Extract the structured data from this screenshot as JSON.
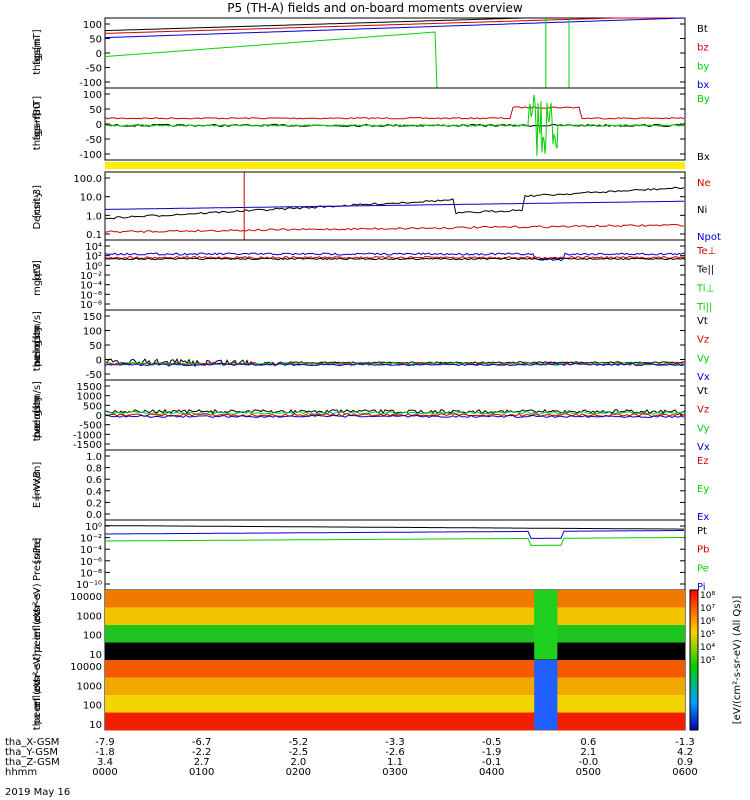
{
  "title": "P5 (TH-A) fields and on-board moments overview",
  "colors": {
    "black": "#000000",
    "red": "#d00000",
    "green": "#00d000",
    "blue": "#0000d0",
    "yellow": "#ffee00"
  },
  "chart_data": [
    {
      "type": "line",
      "panel": "fgs-gsm",
      "ylabel": [
        "tha",
        "fgs",
        "gsm",
        "[nT]"
      ],
      "yticks": [
        "100",
        "50",
        "0",
        "-50",
        "-100"
      ],
      "ylim": [
        -100,
        100
      ],
      "legend": [
        {
          "name": "Bt",
          "color": "black"
        },
        {
          "name": "bz",
          "color": "red"
        },
        {
          "name": "by",
          "color": "green"
        },
        {
          "name": "bx",
          "color": "blue"
        }
      ]
    },
    {
      "type": "line",
      "panel": "fgs-gsm-filtered",
      "ylabel": [
        "tha",
        "fgs",
        "gsm",
        "~f80",
        "[nT]"
      ],
      "yticks": [
        "100",
        "50",
        "0",
        "-50",
        "-100"
      ],
      "ylim": [
        -120,
        120
      ],
      "legend": [
        {
          "name": "By",
          "color": "green"
        },
        {
          "name": "Bx",
          "color": "black"
        }
      ]
    },
    {
      "type": "line",
      "panel": "density",
      "ylabel": [
        "Density",
        "[cm-3]"
      ],
      "yticks": [
        "100.0",
        "10.0",
        "1.0",
        "0.1"
      ],
      "yscale": "log",
      "legend": [
        {
          "name": "Ne",
          "color": "red"
        },
        {
          "name": "Ni",
          "color": "black"
        },
        {
          "name": "Npot",
          "color": "blue"
        }
      ]
    },
    {
      "type": "line",
      "panel": "temperature",
      "ylabel": [
        "mgqt3",
        "[eV]"
      ],
      "yticks": [
        "10⁴",
        "10²",
        "10⁰",
        "10⁻²",
        "10⁻⁴",
        "10⁻⁶",
        "10⁻⁸"
      ],
      "yscale": "log",
      "legend": [
        {
          "name": "Te⊥",
          "color": "red"
        },
        {
          "name": "Te||",
          "color": "black"
        },
        {
          "name": "Ti⊥",
          "color": "green"
        },
        {
          "name": "Ti||",
          "color": "green"
        }
      ]
    },
    {
      "type": "line",
      "panel": "peim-velocity",
      "ylabel": [
        "tha",
        "peim",
        "velocity",
        "gsm",
        "[km/s]"
      ],
      "yticks": [
        "150",
        "100",
        "50",
        "0",
        "-50"
      ],
      "ylim": [
        -50,
        150
      ],
      "legend": [
        {
          "name": "Vt",
          "color": "black"
        },
        {
          "name": "Vz",
          "color": "red"
        },
        {
          "name": "Vy",
          "color": "green"
        },
        {
          "name": "Vx",
          "color": "blue"
        }
      ]
    },
    {
      "type": "line",
      "panel": "peem-velocity",
      "ylabel": [
        "tha",
        "peem",
        "velocity",
        "gsm",
        "[km/s]"
      ],
      "yticks": [
        "1500",
        "1000",
        "500",
        "0",
        "-500",
        "-1000",
        "-1500"
      ],
      "ylim": [
        -1500,
        1500
      ],
      "legend": [
        {
          "name": "Vt",
          "color": "black"
        },
        {
          "name": "Vz",
          "color": "red"
        },
        {
          "name": "Vy",
          "color": "green"
        },
        {
          "name": "Vx",
          "color": "blue"
        }
      ]
    },
    {
      "type": "line",
      "panel": "efield",
      "ylabel": [
        "E=-VxB",
        "[mV/m]"
      ],
      "yticks": [
        "1.0",
        "0.8",
        "0.6",
        "0.4",
        "0.2",
        "0.0"
      ],
      "ylim": [
        0,
        1
      ],
      "legend": [
        {
          "name": "Ez",
          "color": "red"
        },
        {
          "name": "Ey",
          "color": "green"
        },
        {
          "name": "Ex",
          "color": "blue"
        }
      ]
    },
    {
      "type": "line",
      "panel": "pressure",
      "ylabel": [
        "Pressure",
        "[nPa]"
      ],
      "yticks": [
        "10⁰",
        "10⁻²",
        "10⁻⁴",
        "10⁻⁶",
        "10⁻⁸",
        "10⁻¹⁰"
      ],
      "yscale": "log",
      "legend": [
        {
          "name": "Pt",
          "color": "black"
        },
        {
          "name": "Pb",
          "color": "red"
        },
        {
          "name": "Pe",
          "color": "green"
        },
        {
          "name": "Pi",
          "color": "blue"
        }
      ]
    },
    {
      "type": "heatmap",
      "panel": "peir-spectrogram",
      "ylabel": [
        "tha",
        "peir",
        "en",
        "eflux",
        "eV",
        "(cm²-s-",
        "sr-eV)"
      ],
      "yticks": [
        "10000",
        "1000",
        "100",
        "10"
      ],
      "colorbar_label": "[eV/(cm²-s-sr-eV)]",
      "colorbar_ticks": [
        "10⁸",
        "10⁷",
        "10⁶",
        "10⁵",
        "10⁴",
        "10³"
      ]
    },
    {
      "type": "heatmap",
      "panel": "peer-spectrogram",
      "ylabel": [
        "tha",
        "peer",
        "en",
        "eflux",
        "eV",
        "(cm²-s-",
        "sr-eV)"
      ],
      "yticks": [
        "10000",
        "1000",
        "100",
        "10"
      ],
      "colorbar_label": "[eV/(cm²-s-sr-eV) (All Qs)]",
      "colorbar_ticks": [
        "10⁸",
        "10⁷",
        "10⁶",
        "10⁵",
        "10⁴",
        "10³"
      ]
    }
  ],
  "xaxis": {
    "rows": [
      {
        "label": "tha_X-GSM",
        "values": [
          "-7.9",
          "-6.7",
          "-5.2",
          "-3.3",
          "-0.5",
          "0.6",
          "-1.3"
        ]
      },
      {
        "label": "tha_Y-GSM",
        "values": [
          "-1.8",
          "-2.2",
          "-2.5",
          "-2.6",
          "-1.9",
          "2.1",
          "4.2"
        ]
      },
      {
        "label": "tha_Z-GSM",
        "values": [
          "3.4",
          "2.7",
          "2.0",
          "1.1",
          "-0.1",
          "-0.0",
          "0.9"
        ]
      },
      {
        "label": "hhmm",
        "values": [
          "0000",
          "0100",
          "0200",
          "0300",
          "0400",
          "0500",
          "0600"
        ]
      }
    ],
    "date": "2019 May 16"
  }
}
